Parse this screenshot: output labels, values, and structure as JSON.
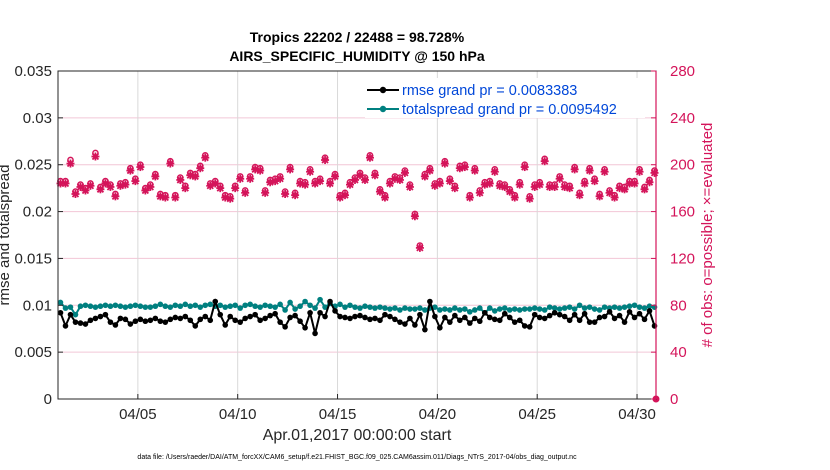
{
  "chart_data": {
    "type": "line",
    "title": [
      "Tropics 22202 / 22488 = 98.728%",
      "AIRS_SPECIFIC_HUMIDITY @ 150 hPa"
    ],
    "xlabel": "Apr.01,2017 00:00:00 start",
    "ylabel": "rmse and totalspread",
    "ylabel_right": "# of obs: o=possible; ×=evaluated",
    "footnote": "data file: /Users/raeder/DAI/ATM_forcXX/CAM6_setup/f.e21.FHIST_BGC.f09_025.CAM6assim.011/Diags_NTrS_2017-04/obs_diag_output.nc",
    "xlim_days": [
      1,
      30.95
    ],
    "x_ticks": [
      {
        "day": 5,
        "label": "04/05"
      },
      {
        "day": 10,
        "label": "04/10"
      },
      {
        "day": 15,
        "label": "04/15"
      },
      {
        "day": 20,
        "label": "04/20"
      },
      {
        "day": 25,
        "label": "04/25"
      },
      {
        "day": 30,
        "label": "04/30"
      }
    ],
    "ylim": [
      0,
      0.035
    ],
    "y_ticks": [
      "0",
      "0.005",
      "0.01",
      "0.015",
      "0.02",
      "0.025",
      "0.03",
      "0.035"
    ],
    "ylim_right": [
      0,
      280
    ],
    "y_ticks_right": [
      "0",
      "40",
      "80",
      "120",
      "160",
      "200",
      "240",
      "280"
    ],
    "grid": true,
    "legend_position": "top-right",
    "legend": [
      {
        "label": "rmse grand pr = 0.0083383",
        "color": "#000000"
      },
      {
        "label": "totalspread grand pr = 0.0095492",
        "color": "#008080"
      }
    ],
    "colors": {
      "rmse": "#000000",
      "spread": "#008080",
      "obs": "#d4145a",
      "grid": "#f2c6d6",
      "vgrid": "#d9d9d9"
    },
    "x_start_day": 1.125,
    "x_step_days": 0.25,
    "series": [
      {
        "name": "rmse",
        "values": [
          0.0092,
          0.0078,
          0.009,
          0.0082,
          0.0081,
          0.008,
          0.0084,
          0.0086,
          0.0088,
          0.009,
          0.0082,
          0.0079,
          0.0086,
          0.0085,
          0.008,
          0.0083,
          0.0085,
          0.0083,
          0.0084,
          0.0086,
          0.0083,
          0.0082,
          0.0085,
          0.0087,
          0.0086,
          0.0088,
          0.0084,
          0.0078,
          0.0085,
          0.0088,
          0.0084,
          0.0104,
          0.009,
          0.0079,
          0.0088,
          0.0084,
          0.0082,
          0.0086,
          0.0088,
          0.009,
          0.0084,
          0.0086,
          0.0089,
          0.0091,
          0.0082,
          0.0077,
          0.0087,
          0.0089,
          0.0083,
          0.0076,
          0.0092,
          0.007,
          0.0092,
          0.0088,
          0.0104,
          0.0094,
          0.0088,
          0.0087,
          0.0086,
          0.0088,
          0.0089,
          0.0087,
          0.0085,
          0.0086,
          0.0084,
          0.009,
          0.0088,
          0.0085,
          0.0082,
          0.008,
          0.0086,
          0.0079,
          0.009,
          0.0074,
          0.0104,
          0.0088,
          0.0076,
          0.0087,
          0.0082,
          0.0089,
          0.0084,
          0.0087,
          0.0081,
          0.0086,
          0.0083,
          0.0092,
          0.0087,
          0.0085,
          0.0084,
          0.0091,
          0.0087,
          0.0082,
          0.0084,
          0.0078,
          0.0077,
          0.009,
          0.0087,
          0.0086,
          0.0089,
          0.0092,
          0.009,
          0.0088,
          0.0084,
          0.009,
          0.0084,
          0.0091,
          0.0082,
          0.0082,
          0.0087,
          0.0088,
          0.0093,
          0.0086,
          0.0089,
          0.0082,
          0.0093,
          0.0087,
          0.0091,
          0.0085,
          0.0094,
          0.0078
        ]
      },
      {
        "name": "totalspread",
        "values": [
          0.0103,
          0.0097,
          0.0098,
          0.009,
          0.0099,
          0.01,
          0.0099,
          0.0098,
          0.0099,
          0.01,
          0.0099,
          0.01,
          0.0099,
          0.0098,
          0.0099,
          0.01,
          0.0099,
          0.0098,
          0.0098,
          0.0099,
          0.0101,
          0.0099,
          0.0098,
          0.01,
          0.0099,
          0.0101,
          0.0099,
          0.01,
          0.0098,
          0.01,
          0.0101,
          0.0099,
          0.01,
          0.0098,
          0.0099,
          0.01,
          0.0097,
          0.01,
          0.0101,
          0.0099,
          0.0098,
          0.01,
          0.0099,
          0.0098,
          0.0101,
          0.0095,
          0.0103,
          0.0096,
          0.0099,
          0.0104,
          0.01,
          0.0097,
          0.0106,
          0.0098,
          0.0102,
          0.0099,
          0.0101,
          0.0098,
          0.01,
          0.0098,
          0.0097,
          0.0099,
          0.0098,
          0.0097,
          0.0098,
          0.0097,
          0.0096,
          0.0097,
          0.0095,
          0.0097,
          0.0096,
          0.0096,
          0.0097,
          0.0095,
          0.0097,
          0.0098,
          0.0095,
          0.0096,
          0.0095,
          0.0097,
          0.0095,
          0.0096,
          0.0093,
          0.0095,
          0.0097,
          0.0092,
          0.0097,
          0.0094,
          0.0096,
          0.0097,
          0.0095,
          0.0096,
          0.0095,
          0.0096,
          0.0096,
          0.0097,
          0.0096,
          0.0095,
          0.0098,
          0.0097,
          0.0096,
          0.0097,
          0.0098,
          0.0096,
          0.01,
          0.0097,
          0.0098,
          0.0096,
          0.0095,
          0.0098,
          0.0097,
          0.0098,
          0.0097,
          0.0098,
          0.0099,
          0.01,
          0.0098,
          0.0097,
          0.0099,
          0.0098
        ]
      },
      {
        "name": "obs_possible",
        "values": [
          186,
          186,
          204,
          177,
          183,
          180,
          184,
          210,
          181,
          186,
          183,
          175,
          184,
          185,
          197,
          188,
          200,
          180,
          183,
          192,
          175,
          174,
          203,
          174,
          189,
          182,
          193,
          192,
          199,
          208,
          184,
          186,
          182,
          174,
          173,
          182,
          190,
          178,
          190,
          198,
          197,
          178,
          187,
          188,
          190,
          177,
          198,
          176,
          186,
          185,
          196,
          186,
          188,
          206,
          186,
          192,
          174,
          176,
          185,
          189,
          193,
          189,
          208,
          193,
          179,
          174,
          186,
          190,
          189,
          195,
          183,
          158,
          131,
          192,
          197,
          184,
          186,
          203,
          188,
          182,
          199,
          200,
          174,
          197,
          178,
          185,
          186,
          196,
          184,
          183,
          179,
          174,
          185,
          200,
          173,
          183,
          185,
          205,
          183,
          183,
          190,
          183,
          182,
          198,
          176,
          186,
          197,
          188,
          175,
          196,
          178,
          174,
          182,
          181,
          186,
          186,
          196,
          181,
          187,
          195
        ]
      },
      {
        "name": "obs_evaluated",
        "values": [
          184,
          184,
          201,
          175,
          181,
          178,
          182,
          207,
          179,
          184,
          181,
          173,
          182,
          183,
          195,
          186,
          198,
          178,
          181,
          190,
          173,
          172,
          201,
          172,
          187,
          180,
          191,
          190,
          197,
          206,
          182,
          184,
          180,
          172,
          171,
          180,
          188,
          176,
          188,
          196,
          195,
          176,
          185,
          186,
          188,
          175,
          196,
          174,
          184,
          183,
          194,
          184,
          186,
          204,
          184,
          190,
          172,
          174,
          183,
          187,
          191,
          187,
          206,
          191,
          177,
          172,
          184,
          188,
          187,
          193,
          181,
          156,
          129,
          190,
          195,
          182,
          184,
          201,
          186,
          180,
          197,
          198,
          172,
          195,
          176,
          183,
          184,
          194,
          182,
          181,
          177,
          172,
          183,
          198,
          171,
          181,
          183,
          203,
          181,
          181,
          188,
          181,
          180,
          196,
          174,
          184,
          195,
          186,
          173,
          194,
          176,
          172,
          180,
          179,
          184,
          184,
          194,
          179,
          185,
          193
        ]
      }
    ]
  }
}
